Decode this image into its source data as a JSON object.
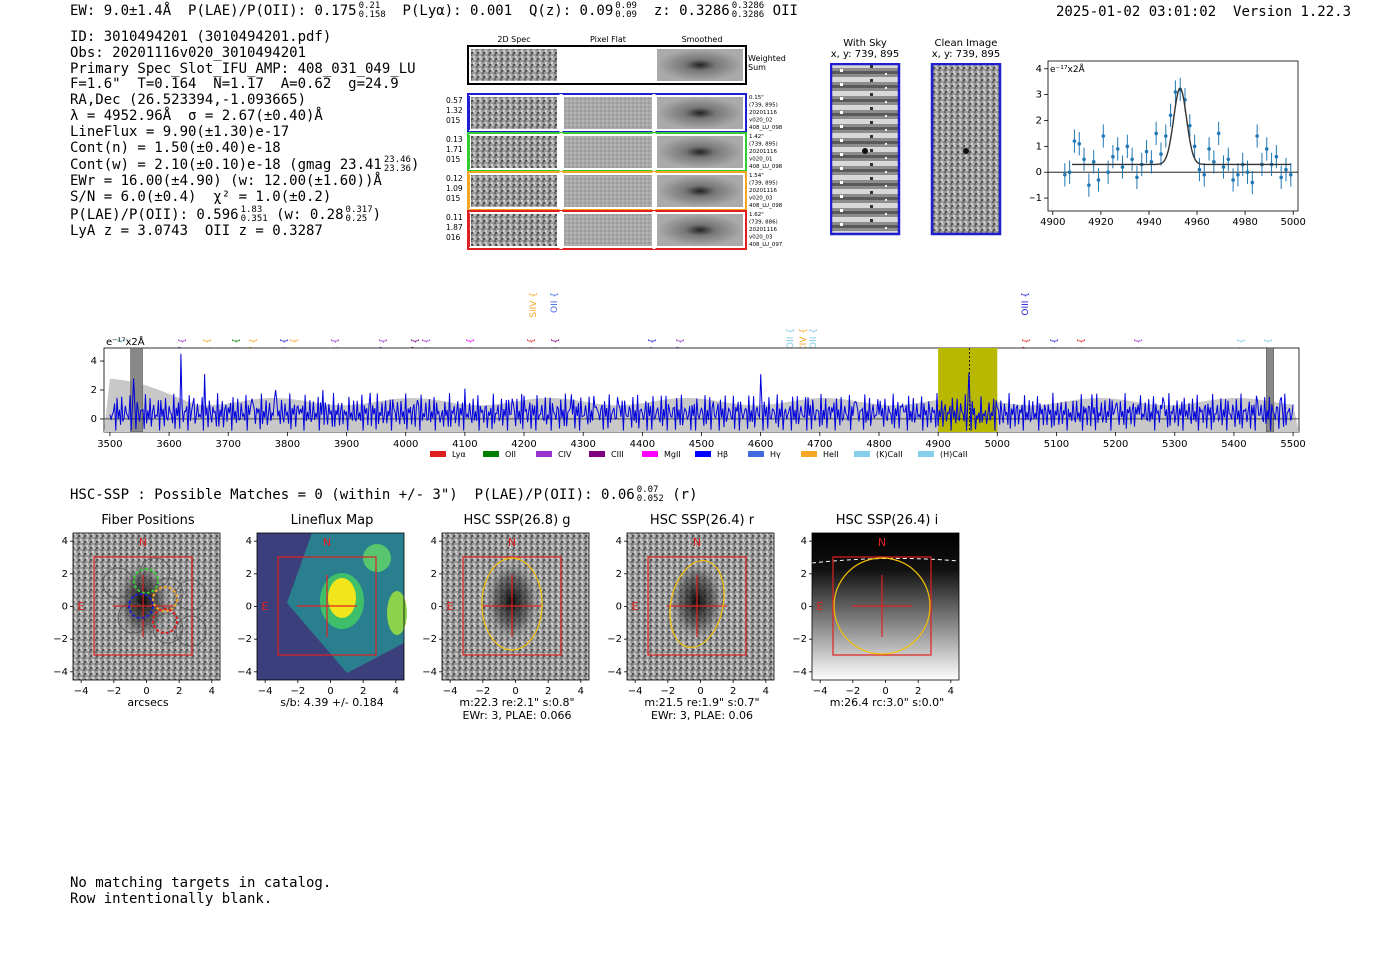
{
  "header": {
    "ew": "EW: 9.0±1.4Å",
    "plae_label": "P(LAE)/P(OII): 0.175",
    "plae_hi": "0.21",
    "plae_lo": "0.158",
    "plya": "P(Lyα): 0.001",
    "qz_label": "Q(z): 0.09",
    "qz_hi": "0.09",
    "qz_lo": "0.09",
    "z_label": "z: 0.3286",
    "z_hi": "0.3286",
    "z_lo": "0.3286",
    "z_line": "OII",
    "datetime": "2025-01-02 03:01:02",
    "version": "Version 1.22.3"
  },
  "info": {
    "id": "ID: 3010494201 (3010494201.pdf)",
    "obs": "Obs: 20201116v020_3010494201",
    "primary": "Primary Spec_Slot_IFU_AMP: 408_031_049_LU",
    "fparams": "F=1.6\"  T=0.164  N=1.17  A=0.62  g=24.9",
    "radec": "RA,Dec (26.523394,-1.093665)",
    "lambda": "λ = 4952.96Å  σ = 2.67(±0.40)Å",
    "lineflux": "LineFlux = 9.90(±1.30)e-17",
    "contn": "Cont(n) = 1.50(±0.40)e-18",
    "contw": "Cont(w) = 2.10(±0.10)e-18 (gmag 23.41",
    "contw_hi": "23.46",
    "contw_lo": "23.36",
    "contw_tail": ")",
    "ewr": "EWr = 16.00(±4.90) (w: 12.00(±1.60))Å",
    "sn": "S/N = 6.0(±0.4)  χ² = 1.0(±0.2)",
    "plae2": "P(LAE)/P(OII): 0.596",
    "plae2_hi": "1.83",
    "plae2_lo": "0.351",
    "plae2_w": "(w: 0.28",
    "plae2_w_hi": "0.317",
    "plae2_w_lo": "0.25",
    "plae2_tail": ")",
    "lya": "LyA z = 3.0743  OII z = 0.3287"
  },
  "cutouts": {
    "headers": [
      "2D Spec",
      "Pixel Flat",
      "Smoothed"
    ],
    "weighted_label": "Weighted Sum",
    "rows": [
      {
        "color": "#1f1fd0",
        "left": [
          "0.57",
          "1.32",
          "015"
        ],
        "right": [
          "0.15\"",
          "(739, 895)",
          "20201116",
          "v020_02",
          "408_LU_098"
        ]
      },
      {
        "color": "#33cc33",
        "left": [
          "0.13",
          "1.71",
          "015"
        ],
        "right": [
          "1.42\"",
          "(739, 895)",
          "20201116",
          "v020_01",
          "408_LU_098"
        ]
      },
      {
        "color": "#f5a623",
        "left": [
          "0.12",
          "1.09",
          "015"
        ],
        "right": [
          "1.54\"",
          "(739, 895)",
          "20201116",
          "v020_03",
          "408_LU_098"
        ]
      },
      {
        "color": "#e02020",
        "left": [
          "0.11",
          "1.87",
          "016"
        ],
        "right": [
          "1.62\"",
          "(739, 886)",
          "20201116",
          "v020_03",
          "408_LU_097"
        ]
      }
    ],
    "with_sky_title": "With Sky",
    "with_sky_xy": "x, y: 739, 895",
    "clean_title": "Clean Image",
    "clean_xy": "x, y: 739, 895"
  },
  "line_fit": {
    "ylabel": "e⁻¹⁷x2Å",
    "xticks": [
      "4900",
      "4920",
      "4940",
      "4960",
      "4980",
      "5000"
    ],
    "yticks": [
      "4",
      "3",
      "2",
      "1",
      "0",
      "−1"
    ]
  },
  "spectrum": {
    "ylabel": "e⁻¹⁷x2Å",
    "xticks": [
      "3500",
      "3600",
      "3700",
      "3800",
      "3900",
      "4000",
      "4100",
      "4200",
      "4300",
      "4400",
      "4500",
      "4600",
      "4700",
      "4800",
      "4900",
      "5000",
      "5100",
      "5200",
      "5300",
      "5400",
      "5500"
    ],
    "yticks": [
      "4",
      "2",
      "0"
    ],
    "line_labels": [
      {
        "t": "MgII",
        "c": "#7ec8e3",
        "x": 120,
        "y": 338
      },
      {
        "t": "SiIV",
        "c": "#9933cc",
        "x": 181,
        "y": 338
      },
      {
        "t": "Lyα",
        "c": "#f5a623",
        "x": 206,
        "y": 338
      },
      {
        "t": "MgII",
        "c": "#008000",
        "x": 235,
        "y": 338
      },
      {
        "t": "NV",
        "c": "#f5a623",
        "x": 252,
        "y": 338
      },
      {
        "t": "OII",
        "c": "#1f1fd0",
        "x": 283,
        "y": 338
      },
      {
        "t": "SiII",
        "c": "#f5a623",
        "x": 293,
        "y": 338
      },
      {
        "t": "Lyα",
        "c": "#9933cc",
        "x": 334,
        "y": 338
      },
      {
        "t": "NV",
        "c": "#9933cc",
        "x": 382,
        "y": 338
      },
      {
        "t": "CIV",
        "c": "#800080",
        "x": 414,
        "y": 338
      },
      {
        "t": "SiII",
        "c": "#9933cc",
        "x": 425,
        "y": 338
      },
      {
        "t": "CII",
        "c": "#ff00ff",
        "x": 469,
        "y": 338
      },
      {
        "t": "OVI",
        "c": "#e02020",
        "x": 530,
        "y": 338
      },
      {
        "t": "SiIV",
        "c": "#f5a623",
        "x": 532,
        "y": 292
      },
      {
        "t": "OII",
        "c": "#4169e1",
        "x": 553,
        "y": 292
      },
      {
        "t": "HeII",
        "c": "#800080",
        "x": 554,
        "y": 338
      },
      {
        "t": "Hγ",
        "c": "#1f1fd0",
        "x": 651,
        "y": 338
      },
      {
        "t": "SiIV",
        "c": "#9933cc",
        "x": 679,
        "y": 338
      },
      {
        "t": "OII",
        "c": "#7ec8e3",
        "x": 789,
        "y": 328
      },
      {
        "t": "CIV",
        "c": "#f5a623",
        "x": 802,
        "y": 328
      },
      {
        "t": "OII",
        "c": "#7ec8e3",
        "x": 812,
        "y": 328
      },
      {
        "t": "OIII",
        "c": "#1f1fd0",
        "x": 1024,
        "y": 292
      },
      {
        "t": "NV",
        "c": "#e02020",
        "x": 1025,
        "y": 338
      },
      {
        "t": "OIII",
        "c": "#1f1fd0",
        "x": 1053,
        "y": 338
      },
      {
        "t": "SiII",
        "c": "#e02020",
        "x": 1080,
        "y": 338
      },
      {
        "t": "HeII",
        "c": "#9933cc",
        "x": 1137,
        "y": 338
      },
      {
        "t": "Hγ",
        "c": "#7ec8e3",
        "x": 1240,
        "y": 338
      },
      {
        "t": "Hγ",
        "c": "#7ec8e3",
        "x": 1267,
        "y": 338
      }
    ],
    "legend": [
      {
        "label": "Lyα",
        "color": "#e02020"
      },
      {
        "label": "OII",
        "color": "#008000"
      },
      {
        "label": "CIV",
        "color": "#9933cc"
      },
      {
        "label": "CIII",
        "color": "#800080"
      },
      {
        "label": "MgII",
        "color": "#ff00ff"
      },
      {
        "label": "Hβ",
        "color": "#0000ff"
      },
      {
        "label": "Hγ",
        "color": "#4169e1"
      },
      {
        "label": "HeII",
        "color": "#f5a623"
      },
      {
        "label": "(K)CaII",
        "color": "#87ceeb"
      },
      {
        "label": "(H)CaII",
        "color": "#87ceeb"
      }
    ]
  },
  "hsc": {
    "summary": "HSC-SSP : Possible Matches = 0 (within +/- 3\")  P(LAE)/P(OII): 0.06",
    "summary_hi": "0.07",
    "summary_lo": "0.052",
    "summary_tail": " (r)",
    "panels": [
      {
        "title": "Fiber Positions",
        "caption1": "arcsecs",
        "caption2": ""
      },
      {
        "title": "Lineflux Map",
        "caption1": "s/b: 4.39 +/- 0.184",
        "caption2": ""
      },
      {
        "title": "HSC SSP(26.8) g",
        "caption1": "m:22.3  re:2.1\"  s:0.8\"",
        "caption2": "EWr: 3, PLAE: 0.066"
      },
      {
        "title": "HSC SSP(26.4) r",
        "caption1": "m:21.5  re:1.9\"  s:0.7\"",
        "caption2": "EWr: 3, PLAE: 0.06"
      },
      {
        "title": "HSC SSP(26.4) i",
        "caption1": "m:26.4 rc:3.0\"  s:0.0\"",
        "caption2": ""
      }
    ],
    "axis_ticks_y": [
      "4",
      "2",
      "0",
      "−2",
      "−4"
    ],
    "axis_ticks_x": [
      "−4",
      "−2",
      "0",
      "2",
      "4"
    ],
    "compass_n": "N",
    "compass_e": "E"
  },
  "footer": {
    "line1": "No matching targets in catalog.",
    "line2": "Row intentionally blank."
  },
  "chart_data": [
    {
      "type": "scatter",
      "title": "",
      "xlabel": "",
      "ylabel": "e⁻¹⁷x2Å",
      "xlim": [
        4898,
        5002
      ],
      "ylim": [
        -1.5,
        4.3
      ],
      "x": [
        4905,
        4907,
        4909,
        4911,
        4913,
        4915,
        4917,
        4919,
        4921,
        4923,
        4925,
        4927,
        4929,
        4931,
        4933,
        4935,
        4937,
        4939,
        4941,
        4943,
        4945,
        4947,
        4949,
        4951,
        4953,
        4955,
        4957,
        4959,
        4961,
        4963,
        4965,
        4967,
        4969,
        4971,
        4973,
        4975,
        4977,
        4979,
        4981,
        4983,
        4985,
        4987,
        4989,
        4991,
        4993,
        4995,
        4997,
        4999
      ],
      "y": [
        -0.1,
        0.0,
        1.2,
        1.1,
        0.5,
        -0.5,
        0.4,
        -0.3,
        1.4,
        0.0,
        0.6,
        0.9,
        0.2,
        1.0,
        0.5,
        -0.2,
        0.3,
        0.8,
        0.4,
        1.5,
        0.7,
        1.4,
        2.2,
        3.1,
        3.2,
        2.8,
        1.8,
        1.0,
        0.1,
        -0.1,
        0.9,
        0.4,
        1.5,
        0.2,
        0.5,
        -0.3,
        -0.1,
        0.3,
        0.0,
        -0.4,
        1.4,
        0.3,
        0.9,
        0.3,
        0.6,
        -0.2,
        0.1,
        -0.1
      ],
      "fit_continuum": 0.3,
      "fit_peak": 3.25,
      "fit_center": 4952.96,
      "fit_sigma": 2.67
    },
    {
      "type": "line",
      "title": "",
      "xlabel": "",
      "ylabel": "e⁻¹⁷x2Å",
      "xlim": [
        3490,
        5510
      ],
      "ylim": [
        -0.9,
        4.9
      ],
      "noise_level": 1.2,
      "highlight_band": [
        4900,
        5000
      ],
      "line_center": 4952.96,
      "masked_regions": [
        [
          3535,
          3555
        ],
        [
          5455,
          5467
        ]
      ],
      "series": [
        {
          "name": "",
          "x": [
            3500,
            3540,
            3580,
            3620,
            3640,
            3660,
            3700,
            3740,
            3780,
            3820,
            3860,
            3900,
            3940,
            3980,
            4020,
            4060,
            4100,
            4140,
            4180,
            4200,
            4240,
            4280,
            4320,
            4360,
            4400,
            4440,
            4480,
            4520,
            4560,
            4600,
            4640,
            4680,
            4720,
            4760,
            4800,
            4840,
            4880,
            4920,
            4940,
            4952,
            4965,
            4980,
            5000,
            5040,
            5080,
            5120,
            5160,
            5200,
            5240,
            5280,
            5320,
            5360,
            5400,
            5440,
            5480,
            5500
          ],
          "y": [
            0.3,
            2.8,
            0.2,
            4.5,
            1.0,
            3.1,
            0.8,
            1.4,
            2.0,
            0.3,
            2.0,
            0.5,
            1.8,
            0.7,
            1.3,
            0.2,
            2.1,
            0.5,
            1.4,
            1.6,
            0.3,
            1.7,
            0.8,
            1.0,
            0.4,
            1.6,
            0.9,
            1.2,
            0.5,
            3.1,
            0.4,
            1.5,
            0.8,
            1.2,
            0.3,
            1.0,
            0.6,
            0.9,
            0.5,
            3.2,
            0.2,
            0.6,
            0.8,
            0.4,
            1.0,
            0.7,
            1.7,
            0.9,
            0.3,
            1.5,
            0.6,
            0.8,
            0.5,
            1.2,
            1.5,
            1.0
          ]
        }
      ]
    }
  ]
}
